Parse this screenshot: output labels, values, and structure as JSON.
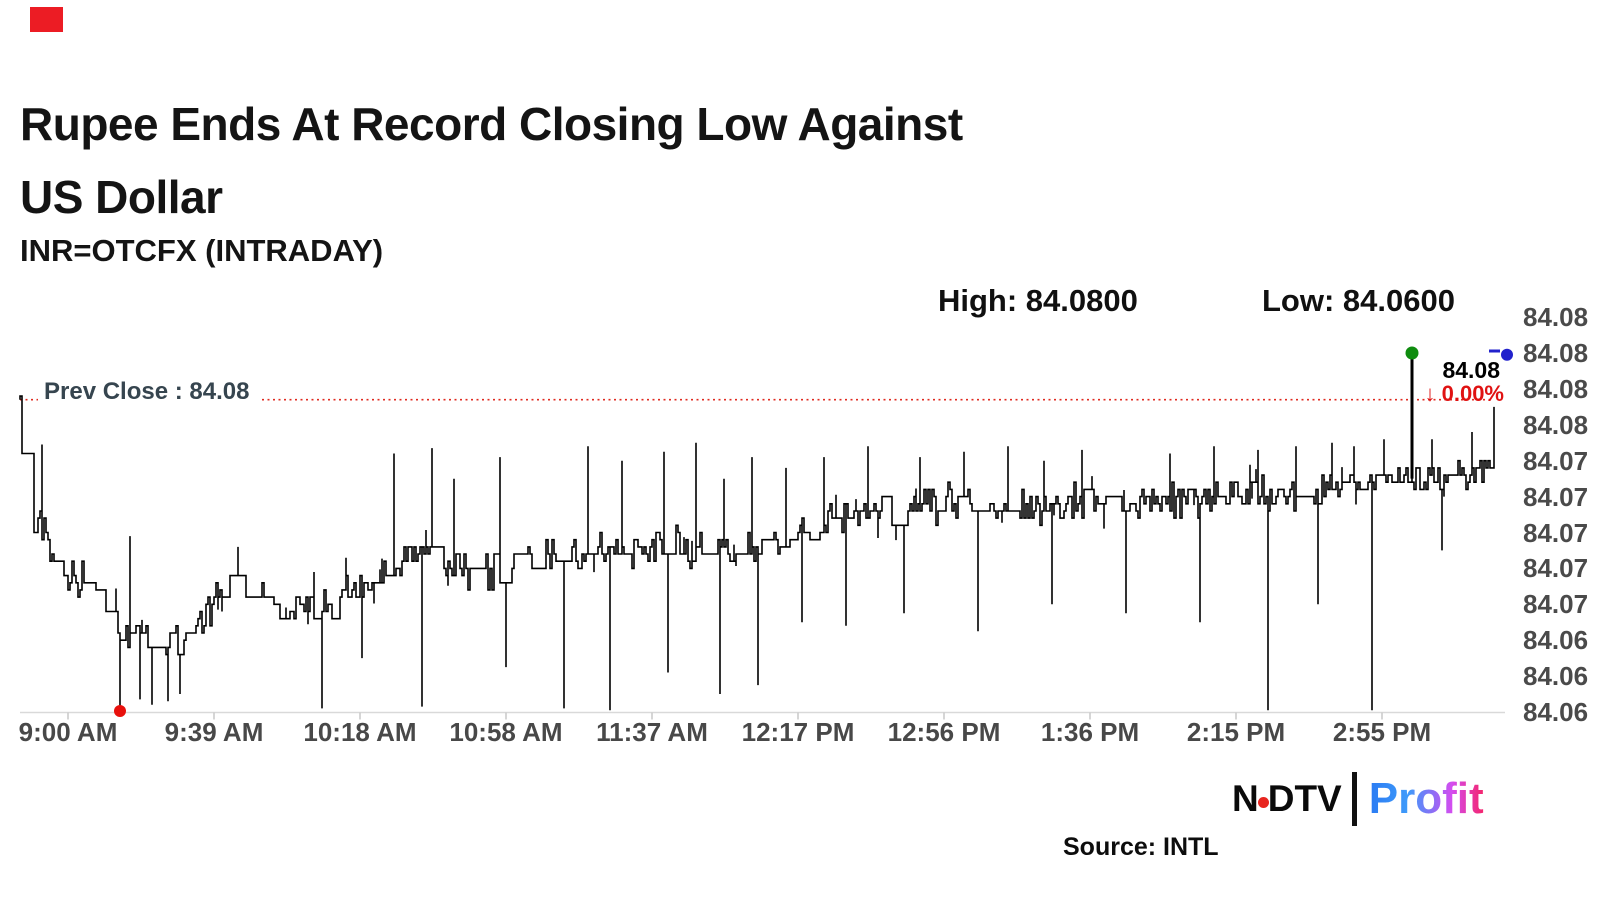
{
  "brand": {
    "corner_block_color": "#ec1c24"
  },
  "header": {
    "title_line1": "Rupee Ends At Record Closing Low Against",
    "title_line2": "US Dollar",
    "subtitle": "INR=OTCFX (INTRADAY)"
  },
  "stats": {
    "high_label": "High: 84.0800",
    "low_label": "Low: 84.0600"
  },
  "prev_close": {
    "label": "Prev Close : 84.08",
    "line_color": "#e02b20"
  },
  "last_quote": {
    "price": "84.08",
    "change": "↓ 0.00%",
    "change_color": "#e01212"
  },
  "footer": {
    "logo_n": "N",
    "logo_dtv": "DTV",
    "logo_profit": "Profit",
    "source": "Source: INTL"
  },
  "chart_data": {
    "type": "line",
    "title": "INR=OTCFX (INTRADAY)",
    "x_axis_labels": [
      "9:00 AM",
      "9:39 AM",
      "10:18 AM",
      "10:58 AM",
      "11:37 AM",
      "12:17 PM",
      "12:56 PM",
      "1:36 PM",
      "2:15 PM",
      "2:55 PM"
    ],
    "y_axis_labels": [
      "84.08",
      "84.08",
      "84.08",
      "84.08",
      "84.07",
      "84.07",
      "84.07",
      "84.07",
      "84.07",
      "84.06",
      "84.06",
      "84.06"
    ],
    "y_axis_values": [
      84.082,
      84.08,
      84.078,
      84.076,
      84.074,
      84.072,
      84.07,
      84.068,
      84.066,
      84.064,
      84.062,
      84.06
    ],
    "y_range": [
      84.059,
      84.083
    ],
    "high": 84.08,
    "low": 84.06,
    "prev_close_value": 84.0774,
    "last_tick": 84.077,
    "last_marker_value": 84.0799,
    "grid": "off",
    "line_color": "#000000",
    "axis_color": "#d9d9d9",
    "tick_color": "#c9c9c9",
    "anchors": [
      [
        0.0,
        84.0774,
        0.0003
      ],
      [
        0.003,
        84.07,
        0.001
      ],
      [
        0.015,
        84.0706,
        0.0012
      ],
      [
        0.027,
        84.068,
        0.0013
      ],
      [
        0.041,
        84.0674,
        0.0013
      ],
      [
        0.054,
        84.0662,
        0.0012
      ],
      [
        0.068,
        84.064,
        0.0011
      ],
      [
        0.078,
        84.0648,
        0.0011
      ],
      [
        0.095,
        84.064,
        0.0012
      ],
      [
        0.115,
        84.0644,
        0.0012
      ],
      [
        0.13,
        84.066,
        0.0012
      ],
      [
        0.145,
        84.0672,
        0.0013
      ],
      [
        0.16,
        84.0668,
        0.0012
      ],
      [
        0.176,
        84.0662,
        0.0013
      ],
      [
        0.193,
        84.0658,
        0.0012
      ],
      [
        0.21,
        84.0662,
        0.0013
      ],
      [
        0.227,
        84.067,
        0.0013
      ],
      [
        0.244,
        84.0672,
        0.0014
      ],
      [
        0.265,
        84.069,
        0.0014
      ],
      [
        0.282,
        84.0686,
        0.0013
      ],
      [
        0.3,
        84.068,
        0.0015
      ],
      [
        0.32,
        84.0678,
        0.0015
      ],
      [
        0.34,
        84.0688,
        0.0013
      ],
      [
        0.36,
        84.069,
        0.0013
      ],
      [
        0.38,
        84.069,
        0.0013
      ],
      [
        0.4,
        84.0686,
        0.0014
      ],
      [
        0.42,
        84.069,
        0.0013
      ],
      [
        0.44,
        84.0694,
        0.0013
      ],
      [
        0.46,
        84.069,
        0.0013
      ],
      [
        0.48,
        84.0688,
        0.0014
      ],
      [
        0.5,
        84.0692,
        0.0013
      ],
      [
        0.52,
        84.0694,
        0.0013
      ],
      [
        0.545,
        84.0704,
        0.0012
      ],
      [
        0.57,
        84.0712,
        0.0012
      ],
      [
        0.6,
        84.0714,
        0.0012
      ],
      [
        0.63,
        84.0716,
        0.0012
      ],
      [
        0.665,
        84.0712,
        0.0013
      ],
      [
        0.7,
        84.0716,
        0.0012
      ],
      [
        0.735,
        84.0716,
        0.0012
      ],
      [
        0.77,
        84.0718,
        0.0012
      ],
      [
        0.8,
        84.0718,
        0.0012
      ],
      [
        0.835,
        84.072,
        0.0012
      ],
      [
        0.87,
        84.0722,
        0.0012
      ],
      [
        0.9,
        84.0726,
        0.0012
      ],
      [
        0.92,
        84.073,
        0.0011
      ],
      [
        0.945,
        84.0732,
        0.001
      ],
      [
        0.96,
        84.073,
        0.0011
      ],
      [
        0.975,
        84.0734,
        0.001
      ],
      [
        0.99,
        84.0733,
        0.001
      ],
      [
        1.0,
        84.074,
        0.0008
      ]
    ],
    "spikes_up": [
      [
        0.0149,
        84.0749
      ],
      [
        0.075,
        84.0698
      ],
      [
        0.148,
        84.0692
      ],
      [
        0.2,
        84.0678
      ],
      [
        0.254,
        84.0744
      ],
      [
        0.279,
        84.0747
      ],
      [
        0.294,
        84.073
      ],
      [
        0.325,
        84.0742
      ],
      [
        0.385,
        84.0748
      ],
      [
        0.408,
        84.074
      ],
      [
        0.437,
        84.0745
      ],
      [
        0.458,
        84.075
      ],
      [
        0.478,
        84.073
      ],
      [
        0.497,
        84.0742
      ],
      [
        0.52,
        84.0736
      ],
      [
        0.545,
        84.0742
      ],
      [
        0.575,
        84.0748
      ],
      [
        0.61,
        84.0742
      ],
      [
        0.64,
        84.0745
      ],
      [
        0.67,
        84.0748
      ],
      [
        0.695,
        84.074
      ],
      [
        0.72,
        84.0746
      ],
      [
        0.75,
        84.0748
      ],
      [
        0.78,
        84.0744
      ],
      [
        0.81,
        84.0748
      ],
      [
        0.84,
        84.0746
      ],
      [
        0.865,
        84.0748
      ],
      [
        0.89,
        84.075
      ],
      [
        0.905,
        84.0748
      ],
      [
        0.925,
        84.0752
      ],
      [
        0.945,
        84.08
      ],
      [
        0.958,
        84.0752
      ],
      [
        0.985,
        84.0756
      ]
    ],
    "spikes_down": [
      [
        0.0685,
        84.0601
      ],
      [
        0.082,
        84.0607
      ],
      [
        0.09,
        84.0604
      ],
      [
        0.1,
        84.0606
      ],
      [
        0.108,
        84.061
      ],
      [
        0.205,
        84.0602
      ],
      [
        0.232,
        84.063
      ],
      [
        0.273,
        84.0603
      ],
      [
        0.33,
        84.0625
      ],
      [
        0.369,
        84.0602
      ],
      [
        0.4,
        84.0601
      ],
      [
        0.44,
        84.0622
      ],
      [
        0.475,
        84.061
      ],
      [
        0.5,
        84.0615
      ],
      [
        0.53,
        84.065
      ],
      [
        0.56,
        84.0648
      ],
      [
        0.6,
        84.0655
      ],
      [
        0.65,
        84.0645
      ],
      [
        0.7,
        84.066
      ],
      [
        0.75,
        84.0655
      ],
      [
        0.8,
        84.065
      ],
      [
        0.847,
        84.0601
      ],
      [
        0.88,
        84.066
      ],
      [
        0.917,
        84.0601
      ],
      [
        0.965,
        84.069
      ]
    ],
    "markers": {
      "low": {
        "f": 0.0685,
        "value": 84.06,
        "color": "#e8100c"
      },
      "high": {
        "f": 0.945,
        "value": 84.08,
        "color": "#0f8c0f"
      },
      "last": {
        "value": 84.0799,
        "color": "#2222cc"
      }
    },
    "legend": "none"
  }
}
